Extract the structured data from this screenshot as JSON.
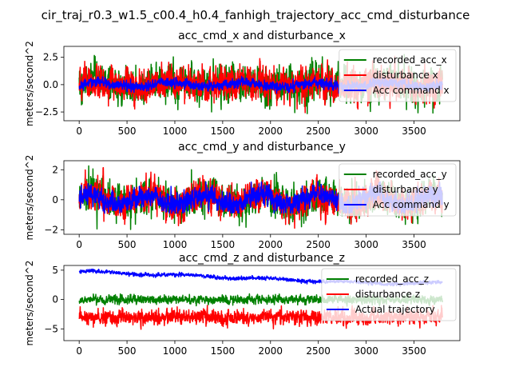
{
  "suptitle": "cir_traj_r0.3_w1.5_c00.4_h0.4_fanhigh_trajectory_acc_cmd_disturbance",
  "chart_data": [
    {
      "type": "line",
      "title": "acc_cmd_x and disturbance_x",
      "ylabel": "meters/second^2",
      "xlabel": "",
      "xlim": [
        -160,
        3980
      ],
      "ylim": [
        -3.3,
        3.5
      ],
      "xticks": [
        0,
        500,
        1000,
        1500,
        2000,
        2500,
        3000,
        3500
      ],
      "yticks": [
        -2.5,
        0.0,
        2.5
      ],
      "ytick_labels": [
        "−2.5",
        "0.0",
        "2.5"
      ],
      "legend_position": "upper right",
      "n_points": 3800,
      "series": [
        {
          "name": "recorded_acc_x",
          "color": "#008000",
          "mean": 0.0,
          "amplitude": 1.1,
          "range": [
            -3.0,
            3.0
          ]
        },
        {
          "name": "disturbance x",
          "color": "#ff0000",
          "mean": 0.0,
          "amplitude": 1.0,
          "range": [
            -2.9,
            2.9
          ]
        },
        {
          "name": "Acc command x",
          "color": "#0000ff",
          "mean": 0.0,
          "amplitude": 0.3,
          "range": [
            -0.8,
            0.9
          ]
        }
      ]
    },
    {
      "type": "line",
      "title": "acc_cmd_y and disturbance_y",
      "ylabel": "meters/second^2",
      "xlabel": "",
      "xlim": [
        -160,
        3980
      ],
      "ylim": [
        -2.3,
        2.6
      ],
      "xticks": [
        0,
        500,
        1000,
        1500,
        2000,
        2500,
        3000,
        3500
      ],
      "yticks": [
        -2,
        0,
        2
      ],
      "ytick_labels": [
        "−2",
        "0",
        "2"
      ],
      "legend_position": "upper right",
      "n_points": 3800,
      "series": [
        {
          "name": "recorded_acc_y",
          "color": "#008000",
          "mean": 0.0,
          "amplitude": 0.75,
          "range": [
            -2.0,
            2.3
          ]
        },
        {
          "name": "disturbance y",
          "color": "#ff0000",
          "mean": 0.0,
          "amplitude": 0.7,
          "range": [
            -2.0,
            2.2
          ]
        },
        {
          "name": "Acc command y",
          "color": "#0000ff",
          "mean": 0.0,
          "amplitude": 0.45,
          "range": [
            -0.9,
            1.2
          ]
        }
      ]
    },
    {
      "type": "line",
      "title": "acc_cmd_z and disturbance_z",
      "ylabel": "meters/second^2",
      "xlabel": "",
      "xlim": [
        -160,
        3980
      ],
      "ylim": [
        -7.0,
        5.8
      ],
      "xticks": [
        0,
        500,
        1000,
        1500,
        2000,
        2500,
        3000,
        3500
      ],
      "yticks": [
        -5,
        0,
        5
      ],
      "ytick_labels": [
        "−5",
        "0",
        "5"
      ],
      "legend_position": "upper right",
      "n_points": 3800,
      "series": [
        {
          "name": "recorded_acc_z",
          "color": "#008000",
          "mean": 0.0,
          "amplitude": 0.45,
          "range": [
            -1.3,
            1.4
          ]
        },
        {
          "name": "disturbance z",
          "color": "#ff0000",
          "mean": -3.0,
          "amplitude": 0.8,
          "range": [
            -6.3,
            -1.0
          ]
        },
        {
          "name": "Actual trajectory",
          "color": "#0000ff",
          "start": 4.8,
          "end": 2.8,
          "amplitude": 0.2,
          "range": [
            2.3,
            5.2
          ]
        }
      ]
    }
  ]
}
